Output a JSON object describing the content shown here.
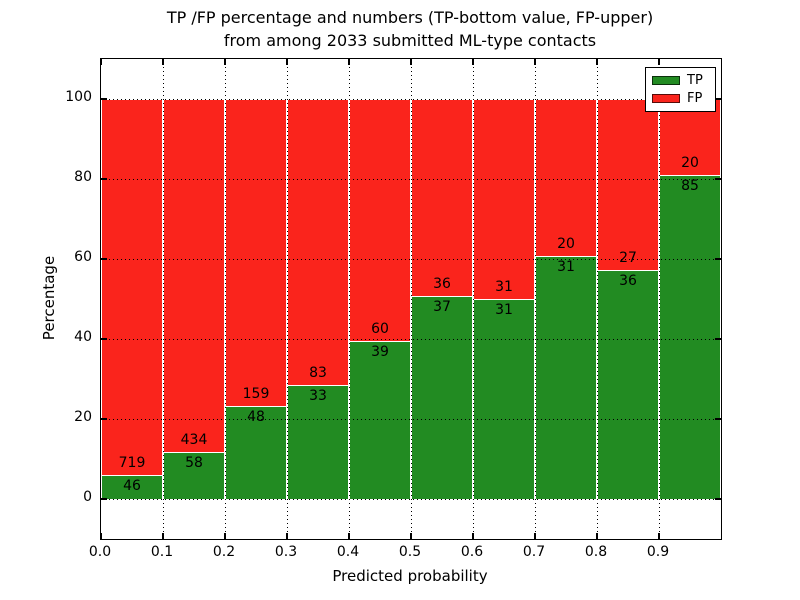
{
  "title": {
    "line1": "TP /FP percentage and numbers (TP-bottom value, FP-upper)",
    "line2": "from among 2033 submitted ML-type contacts"
  },
  "chart_data": {
    "type": "bar",
    "stacked": true,
    "normalized_to_percent": true,
    "total_contacts": 2033,
    "xlabel": "Predicted probability",
    "ylabel": "Percentage",
    "bin_edges": [
      0.0,
      0.1,
      0.2,
      0.3,
      0.4,
      0.5,
      0.6,
      0.7,
      0.8,
      0.9,
      1.0
    ],
    "categories": [
      "0.0",
      "0.1",
      "0.2",
      "0.3",
      "0.4",
      "0.5",
      "0.6",
      "0.7",
      "0.8",
      "0.9"
    ],
    "series": [
      {
        "name": "TP",
        "color": "#228b22",
        "counts": [
          46,
          58,
          48,
          33,
          39,
          37,
          31,
          31,
          36,
          85
        ]
      },
      {
        "name": "FP",
        "color": "#fa241c",
        "counts": [
          719,
          434,
          159,
          83,
          60,
          36,
          31,
          20,
          27,
          20
        ]
      }
    ],
    "tp_percent": [
      6.0,
      11.8,
      23.2,
      28.4,
      39.4,
      50.7,
      50.0,
      60.8,
      57.1,
      81.0
    ],
    "yticks": [
      0,
      20,
      40,
      60,
      80,
      100
    ],
    "xtick_labels": [
      "0.0",
      "0.1",
      "0.2",
      "0.3",
      "0.4",
      "0.5",
      "0.6",
      "0.7",
      "0.8",
      "0.9"
    ],
    "ylim": [
      -10,
      110
    ],
    "xlim": [
      0.0,
      1.0
    ],
    "grid": "dotted-black",
    "bar_edge_color": "#ffffff",
    "legend": {
      "position": "upper-right",
      "entries": [
        {
          "label": "TP",
          "color": "#228b22"
        },
        {
          "label": "FP",
          "color": "#fa241c"
        }
      ]
    }
  }
}
